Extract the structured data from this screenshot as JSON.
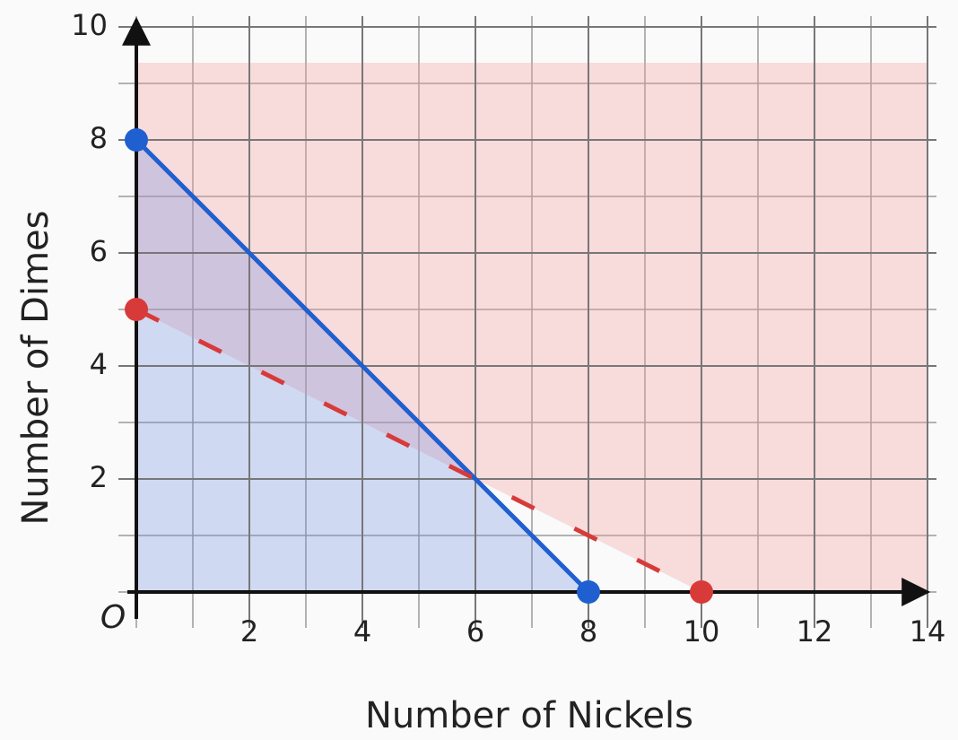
{
  "chart_data": {
    "type": "line",
    "x_label": "Number of Nickels",
    "y_label": "Number of Dimes",
    "origin_label": "O",
    "xlim": [
      0,
      14
    ],
    "ylim": [
      0,
      10
    ],
    "xticks": [
      2,
      4,
      6,
      8,
      10,
      12,
      14
    ],
    "yticks": [
      2,
      4,
      6,
      8,
      10
    ],
    "grid": true,
    "series": [
      {
        "color": "#1f5fd0",
        "style": "solid",
        "x": [
          0,
          8
        ],
        "values": [
          8,
          0
        ]
      },
      {
        "color": "#d83a3a",
        "style": "dashed",
        "x": [
          0,
          10
        ],
        "values": [
          5,
          0
        ]
      }
    ]
  }
}
